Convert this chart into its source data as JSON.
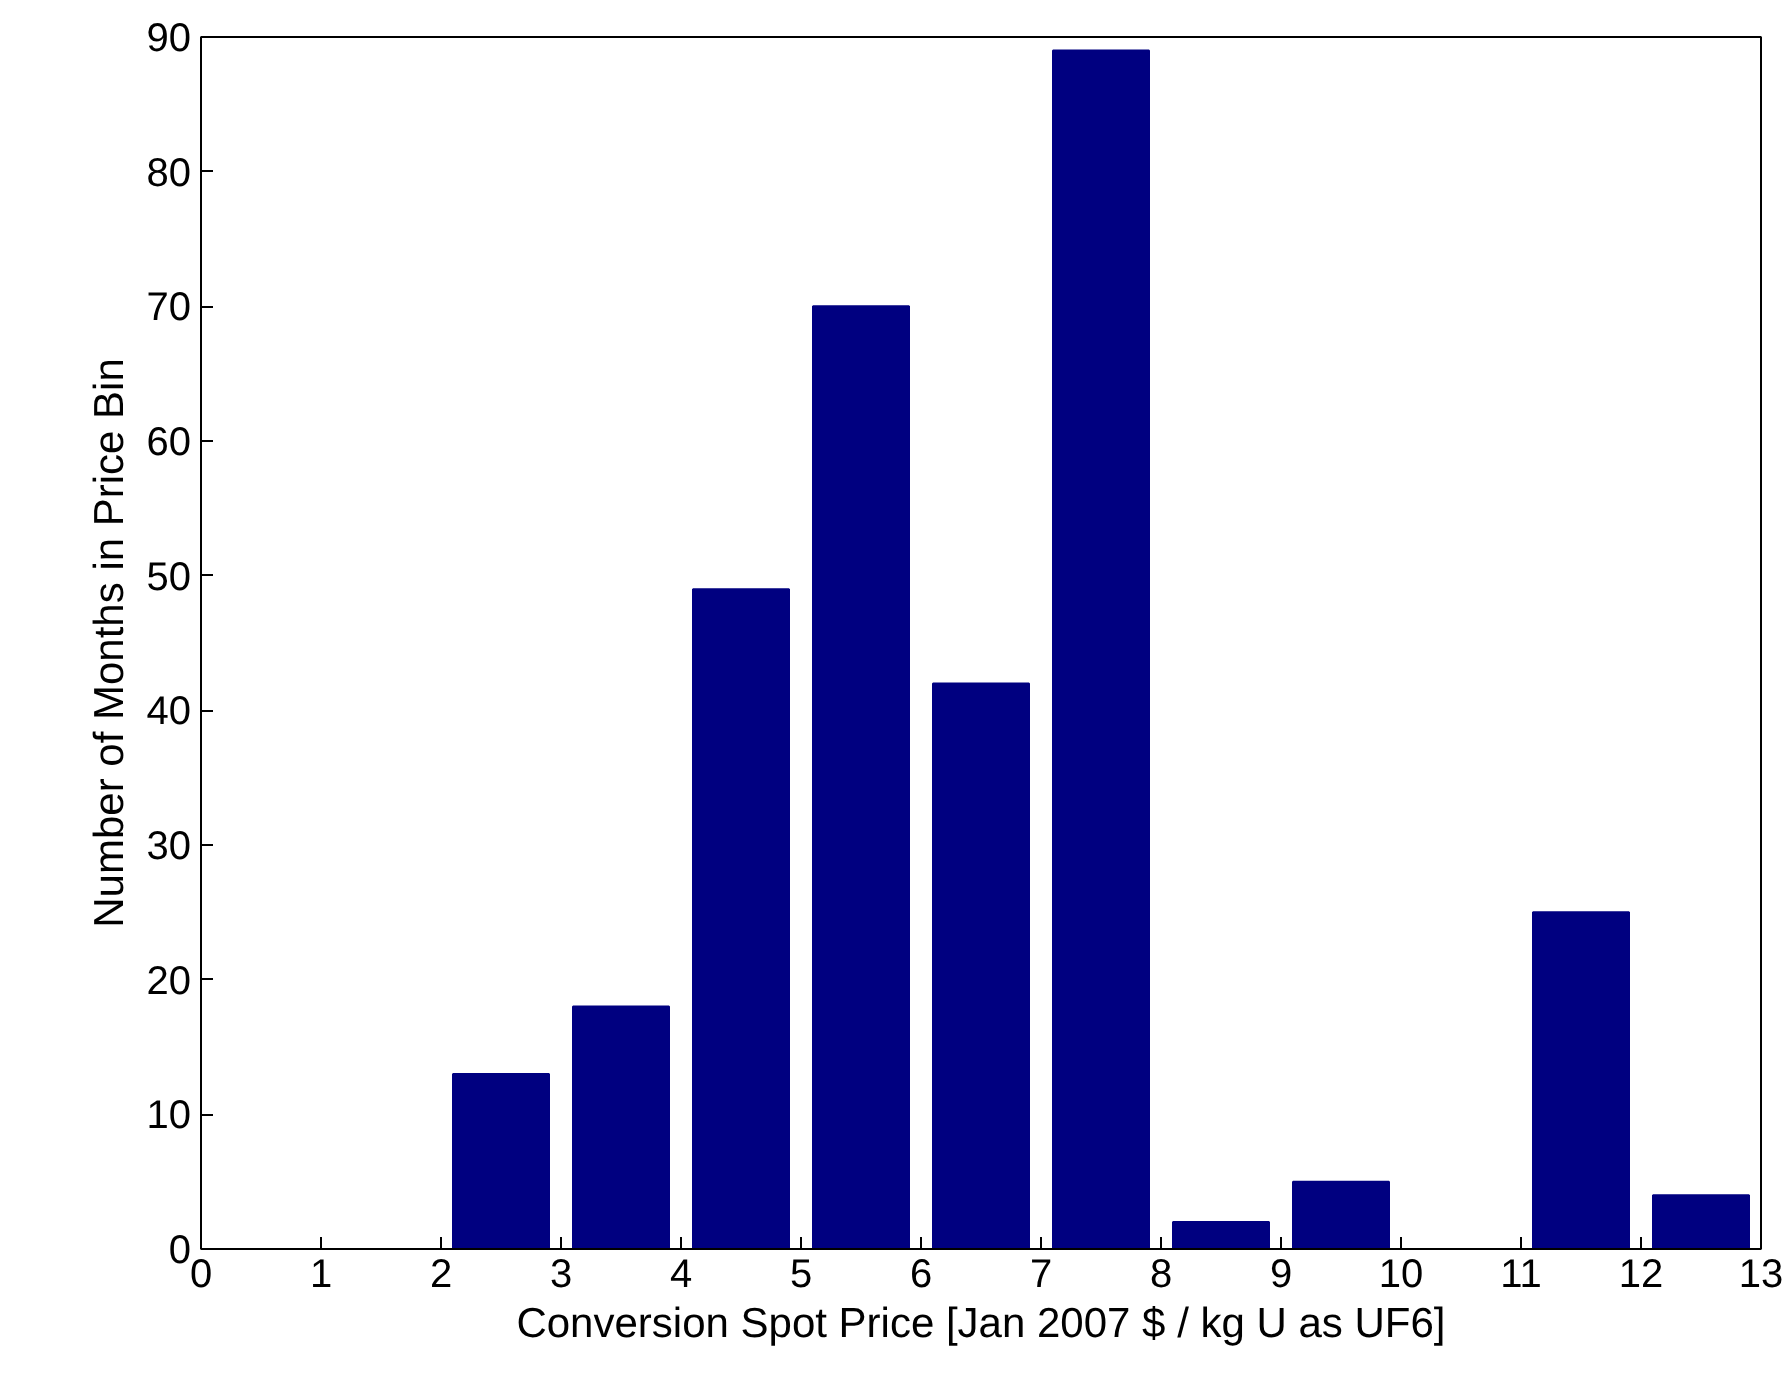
{
  "chart_data": {
    "type": "bar",
    "xlabel": "Conversion Spot Price [Jan 2007 $ / kg U as UF6]",
    "ylabel": "Number of Months in Price Bin",
    "x": [
      0.5,
      1.5,
      2.5,
      3.5,
      4.5,
      5.5,
      6.5,
      7.5,
      8.5,
      9.5,
      10.5,
      11.5,
      12.5
    ],
    "values": [
      0,
      0,
      13,
      18,
      49,
      70,
      42,
      89,
      2,
      5,
      0,
      25,
      4
    ],
    "color": "#000080",
    "xlim": [
      0,
      13
    ],
    "ylim": [
      0,
      90
    ],
    "xticks": [
      0,
      1,
      2,
      3,
      4,
      5,
      6,
      7,
      8,
      9,
      10,
      11,
      12,
      13
    ],
    "yticks": [
      0,
      10,
      20,
      30,
      40,
      50,
      60,
      70,
      80,
      90
    ],
    "grid": false
  }
}
